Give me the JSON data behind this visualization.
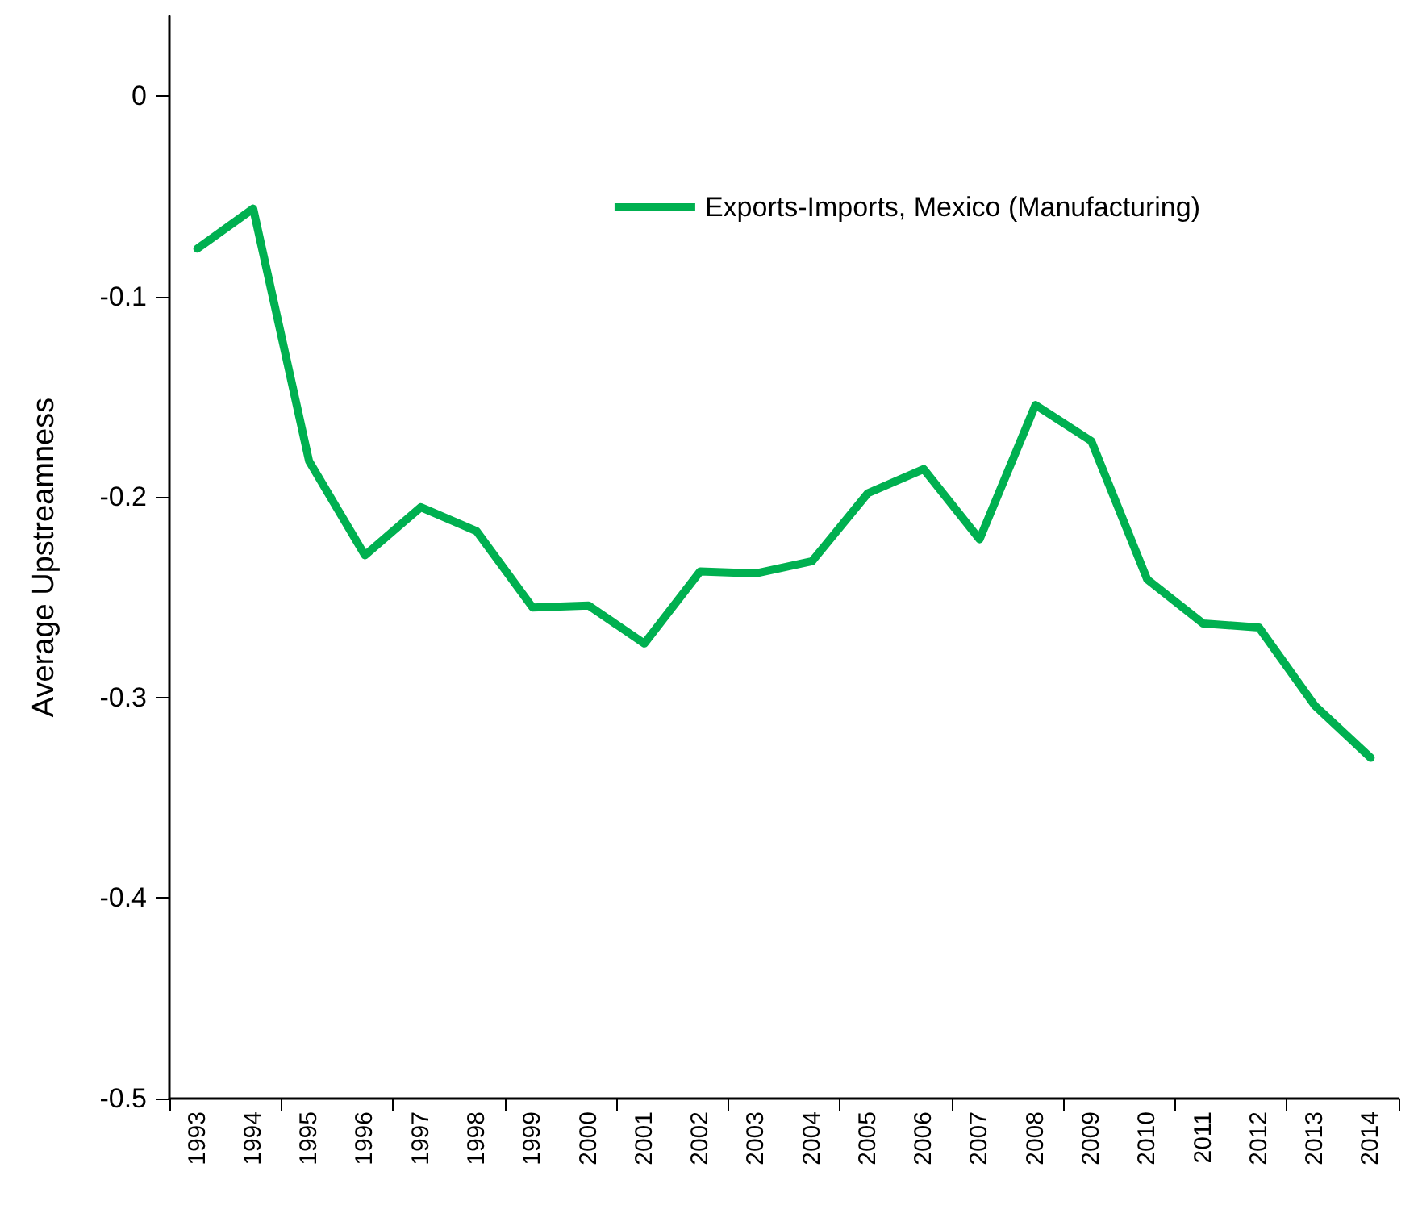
{
  "chart_data": {
    "type": "line",
    "ylabel": "Average Upstreamness",
    "categories": [
      "1993",
      "1994",
      "1995",
      "1996",
      "1997",
      "1998",
      "1999",
      "2000",
      "2001",
      "2002",
      "2003",
      "2004",
      "2005",
      "2006",
      "2007",
      "2008",
      "2009",
      "2010",
      "2011",
      "2012",
      "2013",
      "2014"
    ],
    "series": [
      {
        "name": "Exports-Imports, Mexico (Manufacturing)",
        "color": "#00b050",
        "values": [
          -0.076,
          -0.056,
          -0.182,
          -0.229,
          -0.205,
          -0.217,
          -0.255,
          -0.254,
          -0.273,
          -0.237,
          -0.238,
          -0.232,
          -0.198,
          -0.186,
          -0.221,
          -0.154,
          -0.172,
          -0.241,
          -0.263,
          -0.265,
          -0.304,
          -0.33
        ]
      }
    ],
    "ylim": [
      -0.5,
      0.04
    ],
    "yticks": [
      -0.5,
      -0.4,
      -0.3,
      -0.2,
      -0.1,
      0
    ],
    "grid": false,
    "legend": "top right",
    "marker": "none",
    "line_style": "solid"
  }
}
